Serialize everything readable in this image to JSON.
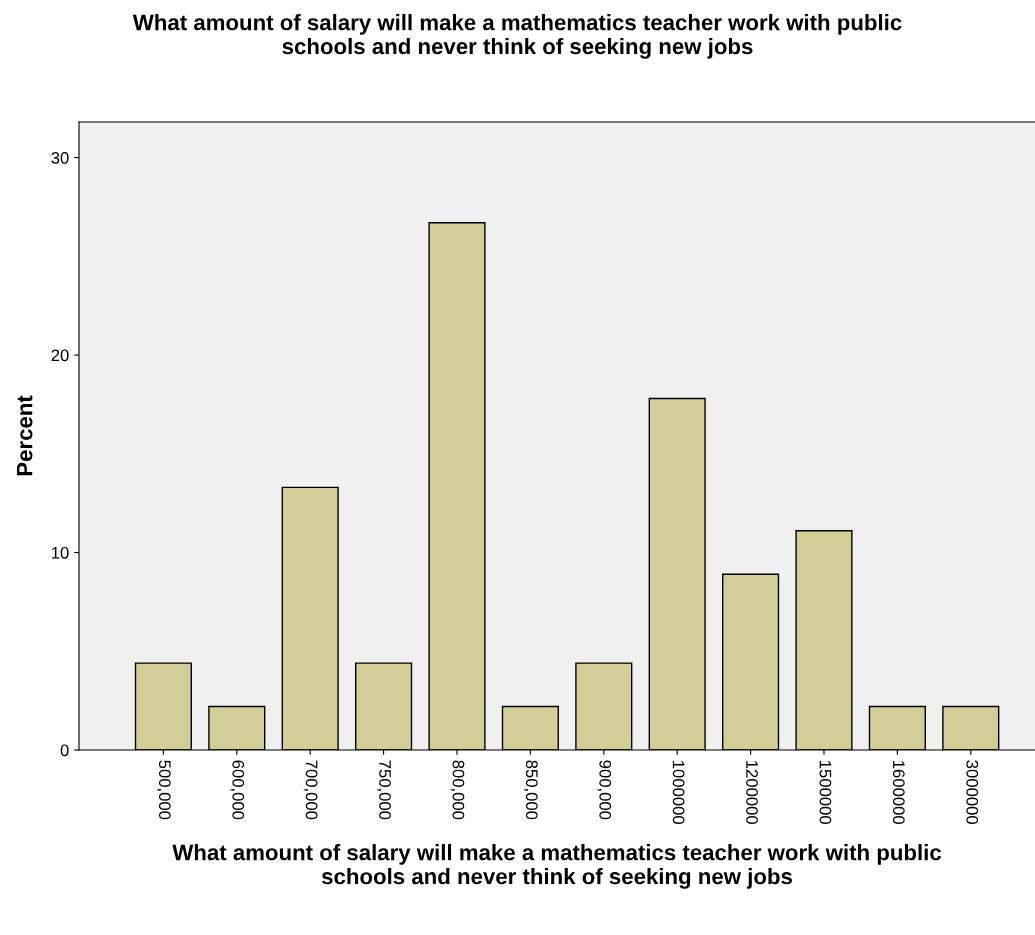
{
  "chart_data": {
    "type": "bar",
    "title": "What amount of salary will make a mathematics teacher work with public\nschools and never think of seeking new jobs",
    "xlabel": "What amount of salary will make a mathematics teacher work with public\nschools and never think of seeking new jobs",
    "ylabel": "Percent",
    "categories": [
      "500,000",
      "600,000",
      "700,000",
      "750,000",
      "800,000",
      "850,000",
      "900,000",
      "1000000",
      "1200000",
      "1500000",
      "1600000",
      "3000000"
    ],
    "values": [
      4.4,
      2.2,
      13.3,
      4.4,
      26.7,
      2.2,
      4.4,
      17.8,
      8.9,
      11.1,
      2.2,
      2.2
    ],
    "color": "#d3ce97",
    "ylim": [
      0,
      31.8
    ],
    "yticks": [
      0,
      10,
      20,
      30
    ],
    "grid": false,
    "legend": false
  }
}
